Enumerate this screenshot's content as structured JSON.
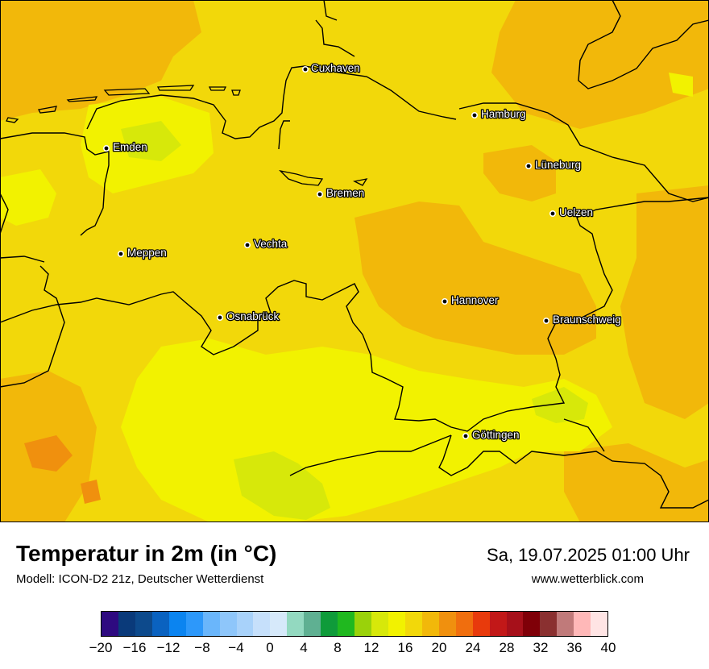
{
  "header": {
    "title": "Temperatur in 2m (in °C)",
    "subtitle": "Modell: ICON-D2 21z, Deutscher Wetterdienst",
    "datetime": "Sa, 19.07.2025 01:00 Uhr",
    "website": "www.wetterblick.com"
  },
  "map": {
    "cities": [
      "Cuxhaven",
      "Hamburg",
      "Emden",
      "Lüneburg",
      "Bremen",
      "Uelzen",
      "Vechta",
      "Meppen",
      "Hannover",
      "Osnabrück",
      "Braunschweig",
      "Göttingen"
    ]
  },
  "legend": {
    "unit": "°C",
    "colors": [
      "#2e0a80",
      "#0a3a7a",
      "#0d4a8c",
      "#0a62c0",
      "#0b84f0",
      "#2d98fa",
      "#6ab6fb",
      "#8ec6fa",
      "#a8d2fa",
      "#c6e0fb",
      "#d6e9fa",
      "#93d9c0",
      "#5fb092",
      "#0f9b3a",
      "#20b81f",
      "#9ad20a",
      "#d7e80a",
      "#f2f200",
      "#f2d80a",
      "#f2b80a",
      "#f0900e",
      "#f06e0e",
      "#e83a0c",
      "#c21818",
      "#a6101a",
      "#7f0008",
      "#8a3030",
      "#c07a7a",
      "#ffb8b8",
      "#ffe4e4"
    ],
    "tick_labels": [
      "−20",
      "−16",
      "−12",
      "−8",
      "−4",
      "0",
      "4",
      "8",
      "12",
      "16",
      "20",
      "24",
      "28",
      "32",
      "36",
      "40"
    ]
  }
}
